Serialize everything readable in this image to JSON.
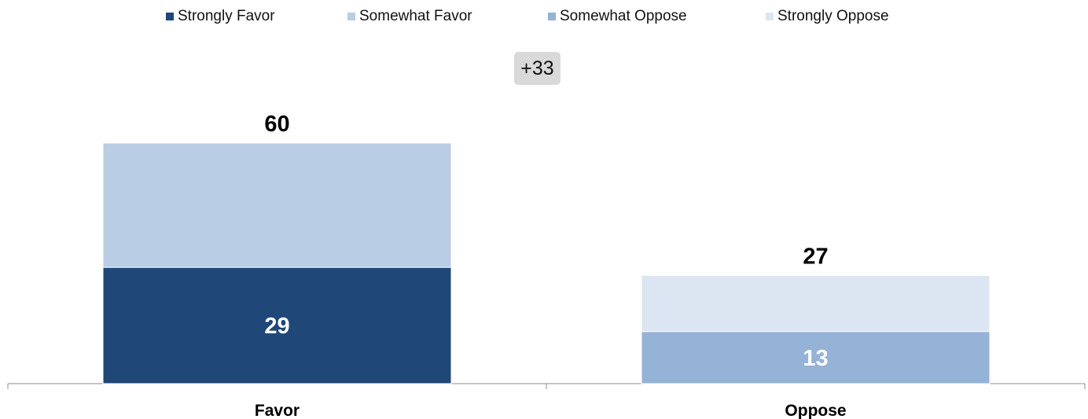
{
  "legend": [
    {
      "label": "Strongly Favor",
      "color": "#1f4778"
    },
    {
      "label": "Somewhat Favor",
      "color": "#b9cde4"
    },
    {
      "label": "Somewhat Oppose",
      "color": "#95b2d7"
    },
    {
      "label": "Strongly Oppose",
      "color": "#dce6f2"
    }
  ],
  "difference_badge": "+33",
  "chart_data": {
    "type": "bar",
    "stacked": true,
    "categories": [
      "Favor",
      "Oppose"
    ],
    "series": [
      {
        "name": "Strongly Favor",
        "color": "#1f4778",
        "values": [
          29,
          0
        ],
        "labels": [
          "29",
          ""
        ]
      },
      {
        "name": "Somewhat Favor",
        "color": "#b9cde4",
        "values": [
          31,
          0
        ],
        "labels": [
          "",
          ""
        ]
      },
      {
        "name": "Somewhat Oppose",
        "color": "#95b2d7",
        "values": [
          0,
          13
        ],
        "labels": [
          "",
          "13"
        ]
      },
      {
        "name": "Strongly Oppose",
        "color": "#dce6f2",
        "values": [
          0,
          14
        ],
        "labels": [
          "",
          ""
        ]
      }
    ],
    "totals": [
      60,
      27
    ],
    "total_labels": [
      "60",
      "27"
    ],
    "ylim": [
      0,
      60
    ],
    "grid": false,
    "legend_position": "top"
  }
}
